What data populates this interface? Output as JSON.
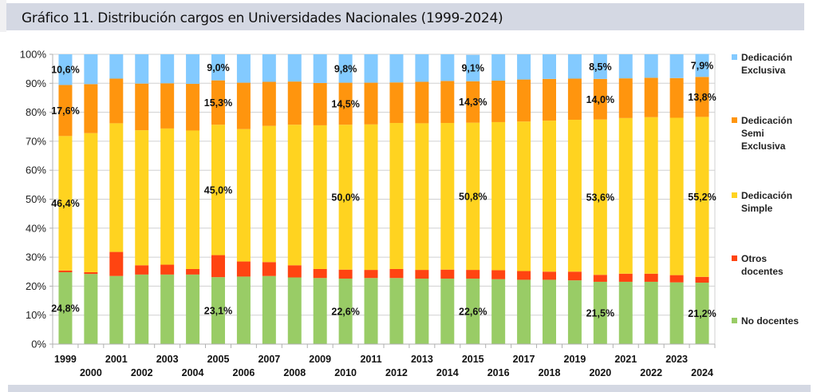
{
  "header": {
    "title": "Gráfico 11. Distribución cargos en Universidades Nacionales (1999-2024)"
  },
  "chart_data": {
    "type": "bar",
    "stacked": true,
    "percent_stacked": true,
    "title": "Gráfico 11. Distribución cargos en Universidades Nacionales (1999-2024)",
    "xlabel": "",
    "ylabel": "",
    "ylim": [
      0,
      100
    ],
    "yticks": [
      "0%",
      "10%",
      "20%",
      "30%",
      "40%",
      "50%",
      "60%",
      "70%",
      "80%",
      "90%",
      "100%"
    ],
    "grid": true,
    "legend_position": "right",
    "categories": [
      "1999",
      "2000",
      "2001",
      "2002",
      "2003",
      "2004",
      "2005",
      "2006",
      "2007",
      "2008",
      "2009",
      "2010",
      "2011",
      "2012",
      "2013",
      "2014",
      "2015",
      "2016",
      "2017",
      "2018",
      "2019",
      "2020",
      "2021",
      "2022",
      "2023",
      "2024"
    ],
    "series": [
      {
        "name": "No docentes",
        "color": "#99cc66",
        "values": [
          24.8,
          24.2,
          23.5,
          24.0,
          24.0,
          24.0,
          23.1,
          23.3,
          23.5,
          23.0,
          22.8,
          22.6,
          22.8,
          22.8,
          22.6,
          22.6,
          22.6,
          22.4,
          22.2,
          22.2,
          22.0,
          21.5,
          21.5,
          21.5,
          21.3,
          21.2
        ]
      },
      {
        "name": "Otros docentes",
        "color": "#ff4411",
        "values": [
          0.6,
          0.6,
          8.3,
          3.2,
          3.4,
          1.9,
          7.6,
          5.2,
          4.8,
          4.2,
          3.1,
          3.1,
          2.8,
          3.1,
          3.0,
          3.1,
          3.0,
          3.1,
          3.0,
          2.8,
          3.0,
          2.4,
          2.8,
          2.8,
          2.5,
          2.0
        ]
      },
      {
        "name": "Dedicación Simple",
        "color": "#ffd320",
        "values": [
          46.4,
          48.0,
          44.4,
          46.6,
          47.0,
          47.8,
          45.0,
          45.7,
          47.0,
          48.5,
          49.6,
          50.0,
          50.2,
          50.4,
          50.6,
          50.6,
          50.8,
          51.1,
          51.6,
          52.1,
          52.4,
          53.6,
          53.7,
          54.0,
          54.3,
          55.2
        ]
      },
      {
        "name": "Dedicación Semi Exclusiva",
        "color": "#ff950e",
        "values": [
          17.6,
          16.9,
          15.4,
          16.1,
          15.6,
          16.1,
          15.3,
          16.0,
          15.2,
          14.9,
          14.6,
          14.5,
          14.4,
          14.0,
          14.3,
          14.5,
          14.3,
          14.3,
          14.5,
          14.4,
          14.2,
          14.0,
          13.7,
          13.6,
          13.7,
          13.8
        ]
      },
      {
        "name": "Dedicación Exclusiva",
        "color": "#83caff",
        "values": [
          10.6,
          10.3,
          8.4,
          10.1,
          10.0,
          10.2,
          9.0,
          9.8,
          9.5,
          9.4,
          9.9,
          9.8,
          9.8,
          9.7,
          9.5,
          9.2,
          9.1,
          9.1,
          8.7,
          8.5,
          8.4,
          8.5,
          8.3,
          8.1,
          8.2,
          7.9
        ]
      }
    ],
    "data_labels": [
      {
        "year": "1999",
        "series": "Dedicación Exclusiva",
        "text": "10,6%"
      },
      {
        "year": "1999",
        "series": "Dedicación Semi Exclusiva",
        "text": "17,6%"
      },
      {
        "year": "1999",
        "series": "Dedicación Simple",
        "text": "46,4%"
      },
      {
        "year": "1999",
        "series": "No docentes",
        "text": "24,8%"
      },
      {
        "year": "2005",
        "series": "Dedicación Exclusiva",
        "text": "9,0%"
      },
      {
        "year": "2005",
        "series": "Dedicación Semi Exclusiva",
        "text": "15,3%"
      },
      {
        "year": "2005",
        "series": "Dedicación Simple",
        "text": "45,0%"
      },
      {
        "year": "2005",
        "series": "No docentes",
        "text": "23,1%"
      },
      {
        "year": "2010",
        "series": "Dedicación Exclusiva",
        "text": "9,8%"
      },
      {
        "year": "2010",
        "series": "Dedicación Semi Exclusiva",
        "text": "14,5%"
      },
      {
        "year": "2010",
        "series": "Dedicación Simple",
        "text": "50,0%"
      },
      {
        "year": "2010",
        "series": "No docentes",
        "text": "22,6%"
      },
      {
        "year": "2015",
        "series": "Dedicación Exclusiva",
        "text": "9,1%"
      },
      {
        "year": "2015",
        "series": "Dedicación Semi Exclusiva",
        "text": "14,3%"
      },
      {
        "year": "2015",
        "series": "Dedicación Simple",
        "text": "50,8%"
      },
      {
        "year": "2015",
        "series": "No docentes",
        "text": "22,6%"
      },
      {
        "year": "2020",
        "series": "Dedicación Exclusiva",
        "text": "8,5%"
      },
      {
        "year": "2020",
        "series": "Dedicación Semi Exclusiva",
        "text": "14,0%"
      },
      {
        "year": "2020",
        "series": "Dedicación Simple",
        "text": "53,6%"
      },
      {
        "year": "2020",
        "series": "No docentes",
        "text": "21,5%"
      },
      {
        "year": "2024",
        "series": "Dedicación Exclusiva",
        "text": "7,9%"
      },
      {
        "year": "2024",
        "series": "Dedicación Semi Exclusiva",
        "text": "13,8%"
      },
      {
        "year": "2024",
        "series": "Dedicación Simple",
        "text": "55,2%"
      },
      {
        "year": "2024",
        "series": "No docentes",
        "text": "21,2%"
      }
    ],
    "legend": [
      {
        "lines": [
          "Dedicación",
          "Exclusiva"
        ],
        "color": "#83caff"
      },
      {
        "lines": [
          "Dedicación",
          "Semi",
          "Exclusiva"
        ],
        "color": "#ff950e"
      },
      {
        "lines": [
          "Dedicación",
          "Simple"
        ],
        "color": "#ffd320"
      },
      {
        "lines": [
          "Otros",
          "docentes"
        ],
        "color": "#ff4411"
      },
      {
        "lines": [
          "No docentes"
        ],
        "color": "#99cc66"
      }
    ]
  }
}
